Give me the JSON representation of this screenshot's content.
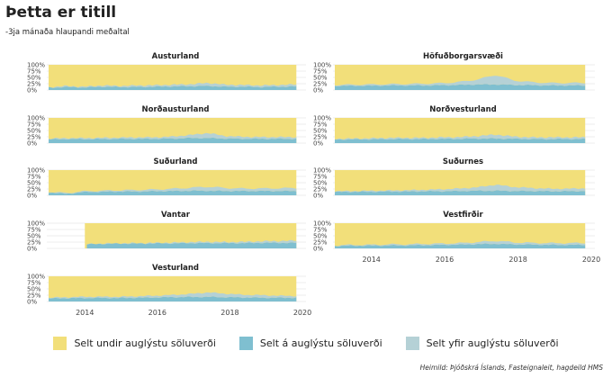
{
  "title": "Þetta er titill",
  "subtitle": "-3ja mánaða hlaupandi meðaltal",
  "source": "Heimild: Þjóðskrá Íslands, Fasteignaleit, hagdeild HMS",
  "colors": {
    "under": "#f2df7a",
    "at": "#7fbfd0",
    "over": "#b5d1d6",
    "grid": "#d9d9d9",
    "text": "#444444"
  },
  "legend": [
    {
      "label": "Selt undir auglýstu söluverði",
      "color": "#f2df7a"
    },
    {
      "label": "Selt á auglýstu söluverði",
      "color": "#7fbfd0"
    },
    {
      "label": "Selt yfir auglýstu söluverði",
      "color": "#b5d1d6"
    }
  ],
  "chart_data": {
    "type": "area",
    "stacked": "100%",
    "facet_layout": "2 columns, 5 rows",
    "ylim": [
      0,
      1
    ],
    "y_ticks": [
      "0%",
      "25%",
      "50%",
      "75%",
      "100%"
    ],
    "xlim": [
      "2013-01",
      "2020-01"
    ],
    "x_ticks": [
      "2014",
      "2016",
      "2018",
      "2020"
    ],
    "x_dates": [
      "2013-01",
      "2013-07",
      "2014-01",
      "2014-07",
      "2015-01",
      "2015-07",
      "2016-01",
      "2016-07",
      "2017-01",
      "2017-07",
      "2018-01",
      "2018-07",
      "2019-01",
      "2019-07",
      "2019-11"
    ],
    "series_names": [
      "Selt yfir auglýstu söluverði",
      "Selt á auglýstu söluverði",
      "Selt undir auglýstu söluverði"
    ],
    "panels": [
      {
        "name": "Austurland",
        "start": "2013-01",
        "over": [
          0.02,
          0.04,
          0.03,
          0.05,
          0.04,
          0.06,
          0.06,
          0.07,
          0.08,
          0.12,
          0.08,
          0.07,
          0.06,
          0.07,
          0.08
        ],
        "at": [
          0.09,
          0.12,
          0.1,
          0.13,
          0.12,
          0.12,
          0.13,
          0.14,
          0.15,
          0.16,
          0.13,
          0.13,
          0.12,
          0.13,
          0.14
        ]
      },
      {
        "name": "Höfuðborgarsvæði",
        "start": "2013-01",
        "over": [
          0.04,
          0.04,
          0.05,
          0.05,
          0.06,
          0.07,
          0.08,
          0.12,
          0.2,
          0.38,
          0.18,
          0.12,
          0.1,
          0.1,
          0.1
        ],
        "at": [
          0.16,
          0.17,
          0.17,
          0.18,
          0.18,
          0.18,
          0.19,
          0.2,
          0.22,
          0.22,
          0.2,
          0.19,
          0.18,
          0.18,
          0.18
        ]
      },
      {
        "name": "Norðausturland",
        "start": "2013-01",
        "over": [
          0.03,
          0.04,
          0.04,
          0.05,
          0.05,
          0.06,
          0.06,
          0.08,
          0.12,
          0.2,
          0.1,
          0.08,
          0.07,
          0.07,
          0.07
        ],
        "at": [
          0.15,
          0.16,
          0.16,
          0.16,
          0.17,
          0.17,
          0.17,
          0.18,
          0.2,
          0.2,
          0.18,
          0.17,
          0.17,
          0.17,
          0.17
        ]
      },
      {
        "name": "Norðvesturland",
        "start": "2013-01",
        "over": [
          0.03,
          0.03,
          0.04,
          0.05,
          0.05,
          0.05,
          0.06,
          0.07,
          0.1,
          0.16,
          0.09,
          0.07,
          0.07,
          0.07,
          0.07
        ],
        "at": [
          0.14,
          0.15,
          0.15,
          0.16,
          0.16,
          0.16,
          0.17,
          0.17,
          0.18,
          0.18,
          0.17,
          0.16,
          0.16,
          0.16,
          0.16
        ]
      },
      {
        "name": "Suðurland",
        "start": "2013-01",
        "over": [
          0.02,
          0.03,
          0.03,
          0.04,
          0.05,
          0.06,
          0.07,
          0.09,
          0.12,
          0.16,
          0.12,
          0.1,
          0.1,
          0.11,
          0.12
        ],
        "at": [
          0.12,
          0.06,
          0.13,
          0.14,
          0.15,
          0.15,
          0.16,
          0.17,
          0.18,
          0.18,
          0.17,
          0.17,
          0.17,
          0.17,
          0.17
        ]
      },
      {
        "name": "Suðurnes",
        "start": "2013-01",
        "over": [
          0.03,
          0.03,
          0.04,
          0.04,
          0.05,
          0.06,
          0.08,
          0.1,
          0.14,
          0.24,
          0.16,
          0.12,
          0.1,
          0.1,
          0.11
        ],
        "at": [
          0.13,
          0.14,
          0.14,
          0.15,
          0.15,
          0.16,
          0.16,
          0.17,
          0.18,
          0.18,
          0.17,
          0.17,
          0.16,
          0.16,
          0.17
        ]
      },
      {
        "name": "Vantar",
        "start": "2014-01",
        "over": [
          0.0,
          0.0,
          0.01,
          0.01,
          0.01,
          0.02,
          0.02,
          0.03,
          0.04,
          0.05,
          0.04,
          0.05,
          0.06,
          0.07,
          0.09
        ],
        "at": [
          0.0,
          0.0,
          0.16,
          0.18,
          0.19,
          0.19,
          0.2,
          0.2,
          0.21,
          0.21,
          0.21,
          0.21,
          0.22,
          0.22,
          0.22
        ]
      },
      {
        "name": "Vestfirðir",
        "start": "2013-01",
        "over": [
          0.02,
          0.03,
          0.03,
          0.04,
          0.04,
          0.05,
          0.05,
          0.06,
          0.08,
          0.12,
          0.08,
          0.07,
          0.07,
          0.07,
          0.07
        ],
        "at": [
          0.1,
          0.11,
          0.11,
          0.12,
          0.12,
          0.13,
          0.14,
          0.15,
          0.17,
          0.18,
          0.16,
          0.15,
          0.14,
          0.14,
          0.14
        ]
      },
      {
        "name": "Vesturland",
        "start": "2013-01",
        "over": [
          0.03,
          0.04,
          0.05,
          0.05,
          0.05,
          0.06,
          0.07,
          0.09,
          0.12,
          0.18,
          0.14,
          0.11,
          0.1,
          0.08,
          0.07
        ],
        "at": [
          0.12,
          0.13,
          0.14,
          0.14,
          0.14,
          0.15,
          0.16,
          0.17,
          0.18,
          0.18,
          0.17,
          0.16,
          0.15,
          0.15,
          0.15
        ]
      }
    ]
  }
}
